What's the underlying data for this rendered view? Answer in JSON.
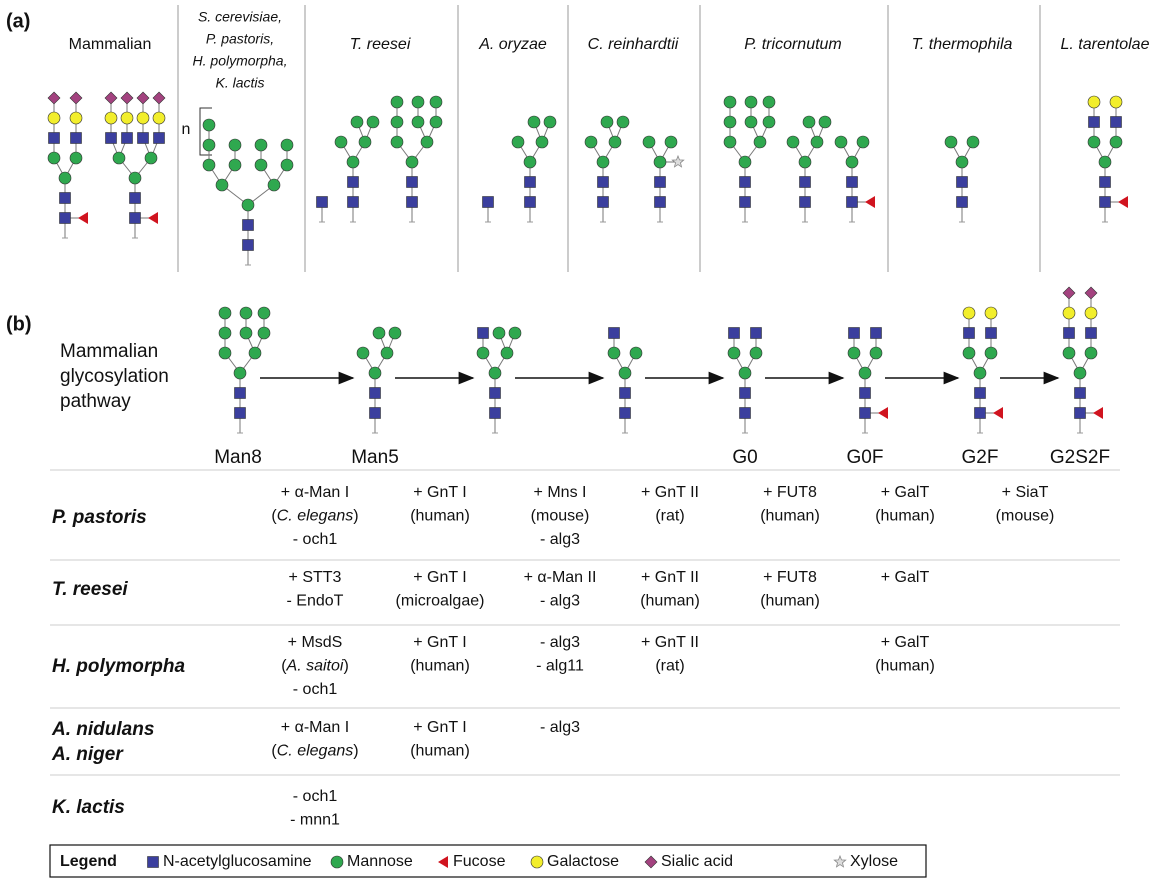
{
  "panel_a": {
    "label": "(a)",
    "repeat_label": "n",
    "columns": [
      {
        "header": [
          "Mammalian"
        ]
      },
      {
        "header": [
          "S. cerevisiae,",
          "P. pastoris,",
          "H. polymorpha,",
          "K. lactis"
        ]
      },
      {
        "header": [
          "T. reesei"
        ]
      },
      {
        "header": [
          "A. oryzae"
        ]
      },
      {
        "header": [
          "C. reinhardtii"
        ]
      },
      {
        "header": [
          "P. tricornutum"
        ]
      },
      {
        "header": [
          "T. thermophila"
        ]
      },
      {
        "header": [
          "L. tarentolae"
        ]
      }
    ]
  },
  "panel_b": {
    "label": "(b)",
    "pathway_title": [
      "Mammalian",
      "glycosylation",
      "pathway"
    ],
    "stage_labels": [
      "Man8",
      "Man5",
      "G0",
      "G0F",
      "G2F",
      "G2S2F"
    ]
  },
  "table": {
    "rows": [
      {
        "organism": [
          "P. pastoris"
        ],
        "cells": [
          [
            "+ α-Man I",
            [
              "(",
              "C. elegans",
              ")"
            ],
            "- och1"
          ],
          [
            "+ GnT I",
            "(human)"
          ],
          [
            "+ Mns I",
            "(mouse)",
            "- alg3"
          ],
          [
            "+ GnT II",
            "(rat)"
          ],
          [
            "+ FUT8",
            "(human)"
          ],
          [
            "+ GalT",
            "(human)"
          ],
          [
            "+ SiaT",
            "(mouse)"
          ]
        ]
      },
      {
        "organism": [
          "T. reesei"
        ],
        "cells": [
          [
            "+ STT3",
            "- EndoT"
          ],
          [
            "+ GnT I",
            "(microalgae)"
          ],
          [
            "+ α-Man II",
            "- alg3"
          ],
          [
            "+ GnT II",
            "(human)"
          ],
          [
            "+ FUT8",
            "(human)"
          ],
          [
            "+ GalT"
          ],
          null
        ]
      },
      {
        "organism": [
          "H. polymorpha"
        ],
        "cells": [
          [
            "+ MsdS",
            [
              "(",
              "A. saitoi",
              ")"
            ],
            "- och1"
          ],
          [
            "+ GnT I",
            "(human)"
          ],
          [
            "- alg3",
            "- alg11"
          ],
          [
            "+ GnT II",
            "(rat)"
          ],
          null,
          [
            "+ GalT",
            "(human)"
          ],
          null
        ]
      },
      {
        "organism": [
          "A. nidulans",
          "A. niger"
        ],
        "cells": [
          [
            "+ α-Man I",
            [
              "(",
              "C. elegans",
              ")"
            ]
          ],
          [
            "+ GnT I",
            "(human)"
          ],
          [
            "- alg3"
          ],
          null,
          null,
          null,
          null
        ]
      },
      {
        "organism": [
          "K. lactis"
        ],
        "cells": [
          [
            "- och1",
            "- mnn1"
          ],
          null,
          null,
          null,
          null,
          null,
          null
        ]
      }
    ]
  },
  "legend": {
    "title": "Legend",
    "items": [
      "N-acetylglucosamine",
      "Mannose",
      "Fucose",
      "Galactose",
      "Sialic acid",
      "Xylose"
    ]
  }
}
